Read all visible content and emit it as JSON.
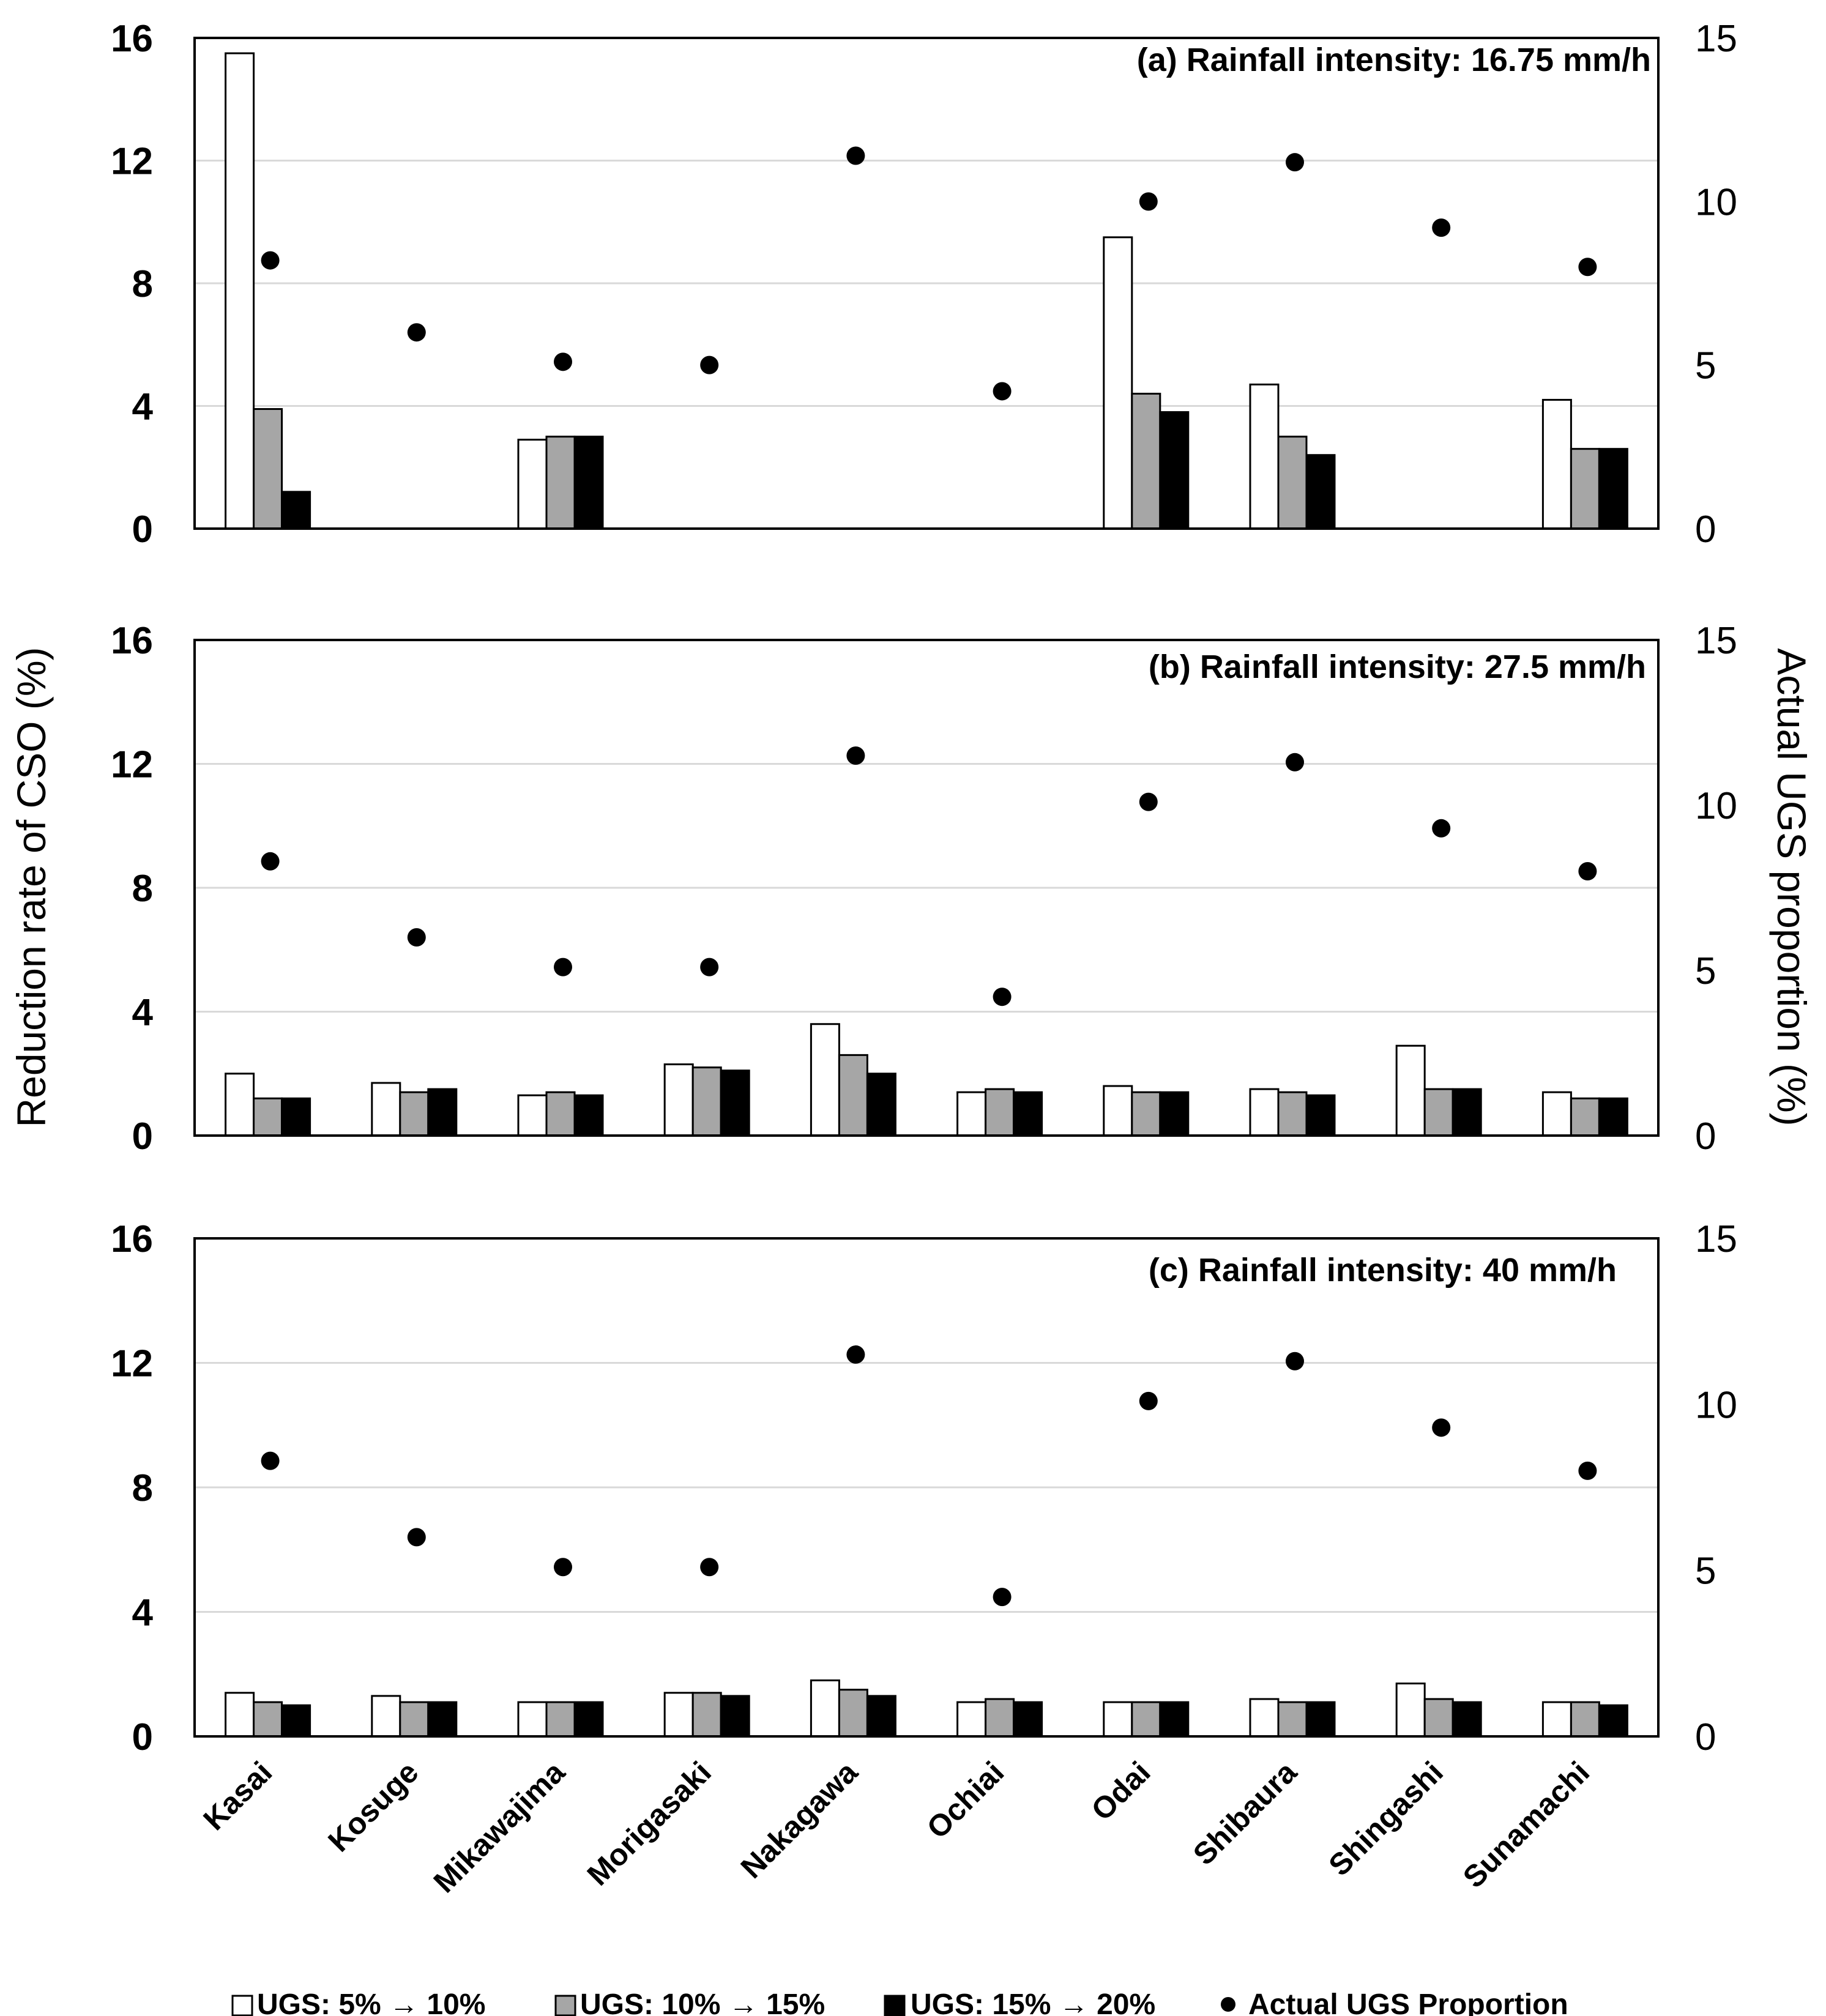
{
  "chart_data": {
    "type": "bar",
    "categories": [
      "Kasai",
      "Kosuge",
      "Mikawajima",
      "Morigasaki",
      "Nakagawa",
      "Ochiai",
      "Odai",
      "Shibaura",
      "Shingashi",
      "Sunamachi"
    ],
    "ylabel_left": "Reduction rate of CSO (%)",
    "ylabel_right": "Actual UGS proportion (%)",
    "ylim_left": [
      0,
      16
    ],
    "yticks_left": [
      "0",
      "4",
      "8",
      "12",
      "16"
    ],
    "ylim_right": [
      0,
      15
    ],
    "yticks_right": [
      "0",
      "5",
      "10",
      "15"
    ],
    "legend": {
      "series1": "UGS: 5% → 10%",
      "series2": "UGS: 10% → 15%",
      "series3": "UGS: 15% → 20%",
      "points": "Actual UGS Proportion"
    },
    "colors": {
      "series1": "#ffffff",
      "series2": "#a6a6a6",
      "series3": "#000000",
      "points": "#000000",
      "grid": "#d9d9d9"
    },
    "panels": [
      {
        "title": "(a) Rainfall intensity: 16.75 mm/h",
        "series": [
          {
            "name": "UGS: 5% → 10%",
            "values": [
              15.5,
              0,
              2.9,
              0,
              0,
              0,
              9.5,
              4.7,
              0,
              4.2
            ]
          },
          {
            "name": "UGS: 10% → 15%",
            "values": [
              3.9,
              0,
              3.0,
              0,
              0,
              0,
              4.4,
              3.0,
              0,
              2.6
            ]
          },
          {
            "name": "UGS: 15% → 20%",
            "values": [
              1.2,
              0,
              3.0,
              0,
              0,
              0,
              3.8,
              2.4,
              0,
              2.6
            ]
          }
        ],
        "ugs_proportion": [
          8.2,
          6.0,
          5.1,
          5.0,
          11.4,
          4.2,
          10.0,
          11.2,
          9.2,
          8.0
        ]
      },
      {
        "title": "(b) Rainfall intensity: 27.5 mm/h",
        "series": [
          {
            "name": "UGS: 5% → 10%",
            "values": [
              2.0,
              1.7,
              1.3,
              2.3,
              3.6,
              1.4,
              1.6,
              1.5,
              2.9,
              1.4
            ]
          },
          {
            "name": "UGS: 10% → 15%",
            "values": [
              1.2,
              1.4,
              1.4,
              2.2,
              2.6,
              1.5,
              1.4,
              1.4,
              1.5,
              1.2
            ]
          },
          {
            "name": "UGS: 15% → 20%",
            "values": [
              1.2,
              1.5,
              1.3,
              2.1,
              2.0,
              1.4,
              1.4,
              1.3,
              1.5,
              1.2
            ]
          }
        ],
        "ugs_proportion": [
          8.3,
          6.0,
          5.1,
          5.1,
          11.5,
          4.2,
          10.1,
          11.3,
          9.3,
          8.0
        ]
      },
      {
        "title": "(c) Rainfall intensity: 40 mm/h",
        "series": [
          {
            "name": "UGS: 5% → 10%",
            "values": [
              1.4,
              1.3,
              1.1,
              1.4,
              1.8,
              1.1,
              1.1,
              1.2,
              1.7,
              1.1
            ]
          },
          {
            "name": "UGS: 10% → 15%",
            "values": [
              1.1,
              1.1,
              1.1,
              1.4,
              1.5,
              1.2,
              1.1,
              1.1,
              1.2,
              1.1
            ]
          },
          {
            "name": "UGS: 15% → 20%",
            "values": [
              1.0,
              1.1,
              1.1,
              1.3,
              1.3,
              1.1,
              1.1,
              1.1,
              1.1,
              1.0
            ]
          }
        ],
        "ugs_proportion": [
          8.3,
          6.0,
          5.1,
          5.1,
          11.5,
          4.2,
          10.1,
          11.3,
          9.3,
          8.0
        ]
      }
    ]
  }
}
